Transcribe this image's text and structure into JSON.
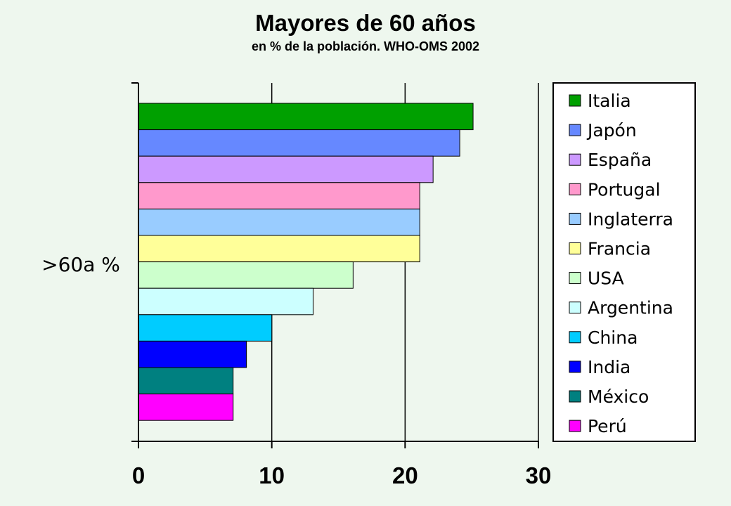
{
  "chart_data": {
    "type": "bar",
    "orientation": "horizontal",
    "title": "Mayores de 60 años",
    "subtitle": "en % de la población. WHO-OMS 2002",
    "ylabel": ">60a %",
    "xlabel": "",
    "xlim": [
      0,
      30
    ],
    "xticks": [
      0,
      10,
      20,
      30
    ],
    "grid": "vertical",
    "legend_position": "right",
    "series": [
      {
        "name": "Italia",
        "value": 25.1,
        "color": "#00a000"
      },
      {
        "name": "Japón",
        "value": 24.1,
        "color": "#6688ff"
      },
      {
        "name": "España",
        "value": 22.1,
        "color": "#cc99ff"
      },
      {
        "name": "Portugal",
        "value": 21.1,
        "color": "#ff99cc"
      },
      {
        "name": "Inglaterra",
        "value": 21.1,
        "color": "#99ccff"
      },
      {
        "name": "Francia",
        "value": 21.1,
        "color": "#ffff99"
      },
      {
        "name": "USA",
        "value": 16.1,
        "color": "#ccffcc"
      },
      {
        "name": "Argentina",
        "value": 13.1,
        "color": "#ccffff"
      },
      {
        "name": "China",
        "value": 10.0,
        "color": "#00ccff"
      },
      {
        "name": "India",
        "value": 8.1,
        "color": "#0000ff"
      },
      {
        "name": "México",
        "value": 7.1,
        "color": "#008080"
      },
      {
        "name": "Perú",
        "value": 7.1,
        "color": "#ff00ff"
      }
    ]
  }
}
